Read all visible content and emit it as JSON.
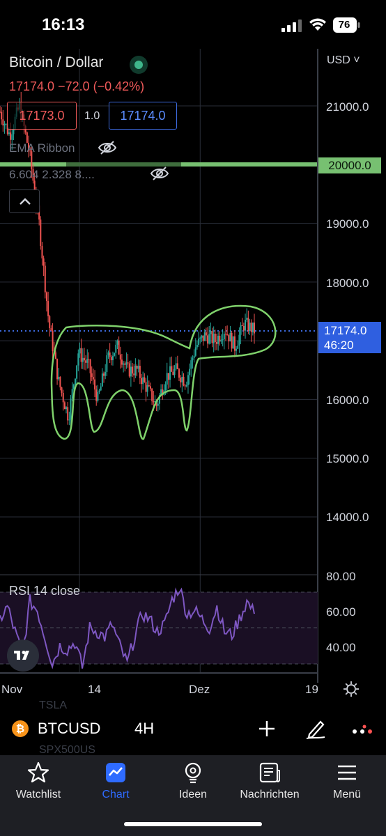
{
  "status_bar": {
    "time": "16:13",
    "battery": "76"
  },
  "chart": {
    "symbol_title": "Bitcoin / Dollar",
    "price_change": "17174.0  −72.0 (−0.42%)",
    "sell_price": "17173.0",
    "quantity": "1.0",
    "buy_price": "17174.0",
    "indicator_name": "EMA Ribbon",
    "indicator_values": "6.604 2.328 8....",
    "currency": "USD",
    "currency_chevron": "˅",
    "price_axis": [
      "21000.0",
      "20000.0",
      "19000.0",
      "18000.0",
      "17174.0",
      "16000.0",
      "15000.0",
      "14000.0"
    ],
    "level_line_price": "20000.0",
    "current_price": "17174.0",
    "countdown": "46:20",
    "time_axis": [
      "Nov",
      "14",
      "Dez",
      "19"
    ],
    "rsi_label": "RSI  14 close",
    "rsi_axis": [
      "80.00",
      "60.00",
      "40.00"
    ],
    "colors": {
      "up": "#26a69a",
      "down": "#ef5350",
      "level_line": "#77c071",
      "current_price": "#2f5fe0",
      "rsi_line": "#7e57c2",
      "drawing": "#7fd16b"
    }
  },
  "chart_data": {
    "type": "candlestick",
    "title": "Bitcoin / Dollar",
    "interval": "4H",
    "ylim": [
      13000,
      22000
    ],
    "x_ticks": [
      "Nov",
      "14",
      "Dez",
      "19"
    ],
    "approx_close_path": [
      {
        "x": "Nov",
        "y": 20900
      },
      {
        "x": "Nov",
        "y": 20500
      },
      {
        "x": "Nov",
        "y": 21000
      },
      {
        "x": "Nov",
        "y": 20200
      },
      {
        "x": "Nov",
        "y": 19000
      },
      {
        "x": "Nov",
        "y": 17300
      },
      {
        "x": "Nov",
        "y": 16300
      },
      {
        "x": "Nov",
        "y": 15700
      },
      {
        "x": "14",
        "y": 16800
      },
      {
        "x": "14",
        "y": 16600
      },
      {
        "x": "14",
        "y": 16000
      },
      {
        "x": "14",
        "y": 16700
      },
      {
        "x": "14",
        "y": 16900
      },
      {
        "x": "14",
        "y": 16500
      },
      {
        "x": "14",
        "y": 16500
      },
      {
        "x": "14",
        "y": 16200
      },
      {
        "x": "14",
        "y": 15900
      },
      {
        "x": "14",
        "y": 16400
      },
      {
        "x": "14",
        "y": 16500
      },
      {
        "x": "14",
        "y": 16300
      },
      {
        "x": "Dez",
        "y": 16900
      },
      {
        "x": "Dez",
        "y": 17100
      },
      {
        "x": "Dez",
        "y": 17000
      },
      {
        "x": "Dez",
        "y": 17200
      },
      {
        "x": "Dez",
        "y": 16900
      },
      {
        "x": "Dez",
        "y": 17300
      },
      {
        "x": "Dez",
        "y": 17174
      }
    ],
    "last_price": 17174.0,
    "horizontal_line": 20000.0,
    "rsi": {
      "label": "RSI 14 close",
      "ylim": [
        20,
        80
      ],
      "bands": [
        30,
        70
      ],
      "approx_values": [
        55,
        62,
        48,
        35,
        65,
        60,
        45,
        30,
        40,
        38,
        42,
        28,
        50,
        48,
        45,
        52,
        40,
        30,
        45,
        58,
        55,
        48,
        52,
        66,
        73,
        58,
        60,
        55,
        50,
        62,
        48,
        46,
        55,
        65,
        58
      ]
    }
  },
  "symbol_bar": {
    "ghost_top": "TSLA",
    "ghost_bottom": "SPX500US",
    "ticker": "BTCUSD",
    "interval": "4H",
    "btc_glyph": "₿"
  },
  "bottom_nav": {
    "items": [
      {
        "label": "Watchlist",
        "icon": "star-icon"
      },
      {
        "label": "Chart",
        "icon": "chart-icon",
        "active": true
      },
      {
        "label": "Ideen",
        "icon": "lightbulb-icon"
      },
      {
        "label": "Nachrichten",
        "icon": "news-icon"
      },
      {
        "label": "Menü",
        "icon": "menu-icon"
      }
    ]
  }
}
